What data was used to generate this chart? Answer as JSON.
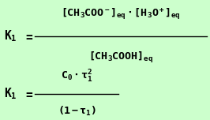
{
  "background_color": "#ccffcc",
  "text_color": "#000000",
  "figsize": [
    2.66,
    1.52
  ],
  "dpi": 100,
  "font_size": 9.5,
  "lhs_fontsize": 10.5,
  "frac_bar_color": "#000000"
}
